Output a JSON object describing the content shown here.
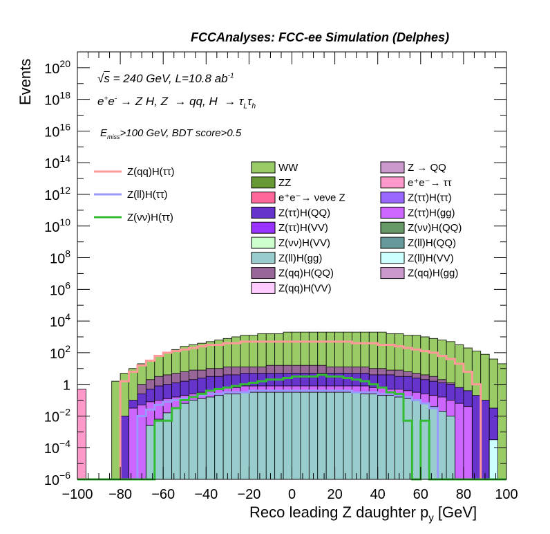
{
  "header": {
    "title": "FCCAnalyses: FCC-ee Simulation (Delphes)"
  },
  "annotations": {
    "energy_line": "√s = 240 GeV, L=10.8 ab⁻¹",
    "energy_sqrt": "√",
    "energy_s": "s",
    "energy_rest": " = 240 GeV, L=10.8 ab",
    "energy_exp": "-1",
    "process_line": "e⁺e⁻ → Z H, Z → qq, H → τ_L τ_h",
    "cut_line": "E_miss>100 GeV, BDT score>0.5"
  },
  "chart_data": {
    "type": "histogram",
    "title": "FCCAnalyses: FCC-ee Simulation (Delphes)",
    "xlabel": "Reco leading Z daughter p",
    "xlabel_sub": "y",
    "xlabel_unit": "[GeV]",
    "ylabel": "Events",
    "xlim": [
      -100,
      100
    ],
    "ylim": [
      1e-06,
      1e+21
    ],
    "yscale": "log",
    "x_ticks": [
      "−100",
      "−80",
      "−60",
      "−40",
      "−20",
      "0",
      "20",
      "40",
      "60",
      "80",
      "100"
    ],
    "y_ticks": [
      {
        "base": "10",
        "exp": "−6"
      },
      {
        "base": "10",
        "exp": "−4"
      },
      {
        "base": "10",
        "exp": "−2"
      },
      {
        "base": "1",
        "exp": ""
      },
      {
        "base": "10",
        "exp": "2"
      },
      {
        "base": "10",
        "exp": "4"
      },
      {
        "base": "10",
        "exp": "6"
      },
      {
        "base": "10",
        "exp": "8"
      },
      {
        "base": "10",
        "exp": "10"
      },
      {
        "base": "10",
        "exp": "12"
      },
      {
        "base": "10",
        "exp": "14"
      },
      {
        "base": "10",
        "exp": "16"
      },
      {
        "base": "10",
        "exp": "18"
      },
      {
        "base": "10",
        "exp": "20"
      }
    ],
    "bin_width": 4,
    "stack_top_log10": [
      -0.3,
      -6,
      -6,
      -6,
      0.2,
      0.7,
      1.0,
      1.3,
      1.5,
      1.8,
      2.0,
      2.2,
      2.4,
      2.5,
      2.6,
      2.7,
      2.8,
      2.9,
      3.0,
      3.1,
      3.1,
      3.2,
      3.2,
      3.2,
      3.3,
      3.3,
      3.3,
      3.3,
      3.3,
      3.3,
      3.3,
      3.3,
      3.3,
      3.3,
      3.3,
      3.3,
      3.2,
      3.2,
      3.1,
      3.1,
      3.0,
      2.9,
      2.8,
      2.7,
      2.5,
      2.3,
      2.1,
      1.9,
      1.6,
      1.3
    ],
    "stacked": [
      {
        "name": "Z(ll)H(gg)",
        "color": "#99cccc",
        "log10": [
          -6,
          -6,
          -6,
          -6,
          -6,
          -6,
          -6,
          -6,
          -2.6,
          -2.2,
          -1.8,
          -1.5,
          -1.2,
          -1.0,
          -0.9,
          -0.8,
          -0.7,
          -0.6,
          -0.6,
          -0.5,
          -0.5,
          -0.5,
          -0.5,
          -0.5,
          -0.5,
          -0.5,
          -0.5,
          -0.5,
          -0.5,
          -0.5,
          -0.5,
          -0.5,
          -0.5,
          -0.6,
          -0.6,
          -0.7,
          -0.7,
          -0.8,
          -0.9,
          -1.0,
          -1.2,
          -1.4,
          -1.7,
          -2.0,
          -6,
          -6,
          -6,
          -6,
          -6,
          -6
        ]
      },
      {
        "name": "Z(qq)H(gg)",
        "color": "#cc99cc",
        "log10": [
          -6,
          -6,
          -6,
          -6,
          -6,
          -6,
          -6,
          -6,
          -6,
          -6,
          -6,
          -6,
          -6,
          -6,
          -6,
          -6,
          -6,
          -6,
          -6,
          -6,
          -6,
          -1.0,
          -6,
          -6,
          -6,
          -6,
          -6,
          -6,
          -6,
          -6,
          -6,
          -6,
          -6,
          -6,
          -6,
          -6,
          -6,
          -6,
          -6,
          -6,
          -6,
          -6,
          -6,
          -6,
          -6,
          -6,
          -6,
          -6,
          -6,
          -6
        ]
      },
      {
        "name": "Z(ττ)H(gg)",
        "color": "#cc66ff",
        "log10": [
          -6,
          -6,
          -6,
          -6,
          -6,
          -6,
          -1.5,
          -1.3,
          -1.1,
          -1.0,
          -0.9,
          -0.8,
          -0.7,
          -0.6,
          -0.5,
          -0.4,
          -0.3,
          -0.2,
          -0.2,
          -0.1,
          -0.1,
          -0.1,
          -0.1,
          -0.1,
          -0.1,
          -0.1,
          -0.1,
          -0.1,
          -0.1,
          -0.1,
          -0.1,
          -0.1,
          -0.1,
          -0.1,
          -0.2,
          -0.2,
          -0.3,
          -0.3,
          -0.4,
          -0.5,
          -0.6,
          -0.7,
          -0.8,
          -1.0,
          -1.2,
          -1.4,
          -6,
          -6,
          -6,
          -6
        ]
      },
      {
        "name": "Z(ττ)H(QQ)",
        "color": "#6633cc",
        "log10": [
          -6,
          -6,
          -6,
          -6,
          -6,
          -2.0,
          -1.0,
          -0.6,
          -0.3,
          -0.1,
          0.0,
          0.1,
          0.2,
          0.3,
          0.4,
          0.5,
          0.5,
          0.6,
          0.6,
          0.7,
          0.7,
          0.7,
          0.7,
          0.7,
          0.7,
          0.7,
          0.7,
          0.7,
          0.7,
          0.7,
          0.7,
          0.7,
          0.7,
          0.7,
          0.6,
          0.6,
          0.6,
          0.5,
          0.5,
          0.4,
          0.3,
          0.2,
          0.1,
          0.0,
          -0.2,
          -0.4,
          -0.7,
          -1.0,
          -1.5,
          -6
        ]
      },
      {
        "name": "Z(qq)H(QQ)",
        "color": "#996699",
        "log10": [
          -6,
          -6,
          -6,
          -6,
          -6,
          -6,
          -6,
          0.0,
          0.3,
          0.5,
          0.6,
          0.7,
          0.8,
          0.9,
          0.9,
          1.0,
          1.0,
          1.1,
          1.1,
          1.1,
          1.1,
          1.1,
          1.2,
          1.2,
          1.2,
          1.2,
          1.2,
          1.2,
          1.2,
          1.1,
          1.1,
          1.1,
          1.1,
          1.1,
          1.0,
          1.0,
          0.9,
          0.9,
          0.8,
          0.7,
          0.6,
          0.5,
          0.3,
          0.1,
          -0.3,
          -6,
          -6,
          -6,
          -6,
          -6
        ]
      },
      {
        "name": "WW",
        "color": "#99cc66",
        "log10": [
          -6,
          -6,
          -6,
          -6,
          0.2,
          0.7,
          1.0,
          1.3,
          1.5,
          1.8,
          2.0,
          2.2,
          2.4,
          2.5,
          2.6,
          2.7,
          2.8,
          2.9,
          3.0,
          3.1,
          3.1,
          3.2,
          3.2,
          3.2,
          3.3,
          3.3,
          3.3,
          3.3,
          3.3,
          3.3,
          3.3,
          3.3,
          3.3,
          3.3,
          3.3,
          3.3,
          3.2,
          3.2,
          3.1,
          3.1,
          3.0,
          2.9,
          2.8,
          2.7,
          2.5,
          2.3,
          2.1,
          1.9,
          1.6,
          1.3
        ]
      }
    ],
    "lines": [
      {
        "name": "Z(qq)H(ττ)",
        "color": "#ff9999",
        "log10": [
          -6,
          -6,
          -6,
          -6,
          -6,
          0.2,
          0.8,
          1.2,
          1.5,
          1.8,
          2.0,
          2.1,
          2.2,
          2.3,
          2.4,
          2.5,
          2.5,
          2.6,
          2.6,
          2.7,
          2.7,
          2.7,
          2.7,
          2.7,
          2.7,
          2.7,
          2.7,
          2.7,
          2.7,
          2.7,
          2.7,
          2.7,
          2.6,
          2.6,
          2.6,
          2.5,
          2.5,
          2.4,
          2.3,
          2.2,
          2.1,
          2.0,
          1.8,
          1.6,
          1.3,
          0.8,
          0.0,
          -6,
          -6,
          -6
        ]
      },
      {
        "name": "Z(ll)H(ττ)",
        "color": "#9999ff",
        "log10": [
          -6,
          -6,
          -6,
          -6,
          -6,
          -6,
          -6,
          -2.0,
          -1.6,
          -1.3,
          -1.1,
          -1.0,
          -0.9,
          -0.8,
          -0.7,
          -0.6,
          -0.6,
          -0.5,
          -0.5,
          -0.5,
          -0.4,
          -0.4,
          -0.4,
          -0.4,
          -0.4,
          -0.4,
          -0.4,
          -0.4,
          -0.4,
          -0.4,
          -0.4,
          -0.4,
          -0.5,
          -0.5,
          -0.5,
          -0.6,
          -0.6,
          -0.7,
          -0.8,
          -1.0,
          -1.2,
          -1.5,
          -6,
          -6,
          -6,
          -6,
          -6,
          -6,
          -6,
          -6
        ]
      },
      {
        "name": "Z(νν)H(ττ)",
        "color": "#33bb33",
        "log10": [
          -6,
          -6,
          -6,
          -6,
          -6,
          -6,
          -6,
          -6,
          -6,
          -2.3,
          -2.3,
          -1.5,
          -1.0,
          -0.8,
          -0.6,
          -0.4,
          -0.3,
          -0.2,
          -0.1,
          0.0,
          0.1,
          0.2,
          0.3,
          0.3,
          0.4,
          0.5,
          0.5,
          0.5,
          0.6,
          0.5,
          0.5,
          0.4,
          0.3,
          0.2,
          0.0,
          -0.2,
          -0.5,
          -0.6,
          -2.3,
          -6,
          -2.3,
          -6,
          -6,
          -6,
          -6,
          -6,
          -6,
          -6,
          -6,
          -6
        ]
      }
    ],
    "edge_bins": [
      {
        "x_from": -100,
        "x_to": -96,
        "log10": -0.3,
        "color": "#ff99cc"
      },
      {
        "x_from": 92,
        "x_to": 96,
        "log10": -3.5,
        "color": "#ccffff"
      }
    ],
    "legend": {
      "lines": [
        {
          "label": "Z(qq)H(ττ)",
          "color": "#ff9999"
        },
        {
          "label": "Z(ll)H(ττ)",
          "color": "#9999ff"
        },
        {
          "label": "Z(νν)H(ττ)",
          "color": "#33bb33"
        }
      ],
      "col1": [
        {
          "label": "WW",
          "color": "#99cc66"
        },
        {
          "label": "ZZ",
          "color": "#669933"
        },
        {
          "label": "e⁺e⁻→ νeνe Z",
          "color": "#ff6699"
        },
        {
          "label": "Z(ττ)H(QQ)",
          "color": "#6633cc"
        },
        {
          "label": "Z(ττ)H(VV)",
          "color": "#9933ff"
        },
        {
          "label": "Z(νν)H(VV)",
          "color": "#ccffcc"
        },
        {
          "label": "Z(ll)H(gg)",
          "color": "#99cccc"
        },
        {
          "label": "Z(qq)H(QQ)",
          "color": "#996699"
        },
        {
          "label": "Z(qq)H(VV)",
          "color": "#ffccff"
        }
      ],
      "col2": [
        {
          "label": "Z → QQ",
          "color": "#cc99cc"
        },
        {
          "label": "e⁺e⁻→ ττ",
          "color": "#ff99cc"
        },
        {
          "label": "Z(ττ)H(ττ)",
          "color": "#9966ff"
        },
        {
          "label": "Z(ττ)H(gg)",
          "color": "#cc66ff"
        },
        {
          "label": "Z(νν)H(QQ)",
          "color": "#669966"
        },
        {
          "label": "Z(ll)H(QQ)",
          "color": "#669999"
        },
        {
          "label": "Z(ll)H(VV)",
          "color": "#ccffff"
        },
        {
          "label": "Z(qq)H(gg)",
          "color": "#cc99cc"
        }
      ]
    }
  }
}
